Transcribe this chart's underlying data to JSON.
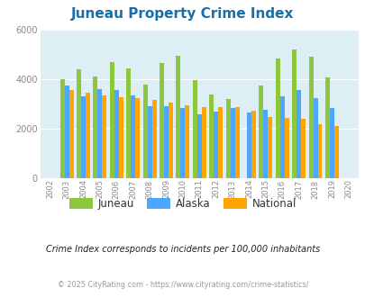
{
  "title": "Juneau Property Crime Index",
  "years": [
    2002,
    2003,
    2004,
    2005,
    2006,
    2007,
    2008,
    2009,
    2010,
    2011,
    2012,
    2013,
    2014,
    2015,
    2016,
    2017,
    2018,
    2019,
    2020
  ],
  "juneau": [
    null,
    4000,
    4400,
    4100,
    4700,
    4450,
    3800,
    4650,
    4950,
    3950,
    3380,
    3200,
    null,
    3750,
    4820,
    5200,
    4900,
    4060,
    null
  ],
  "alaska": [
    null,
    3750,
    3320,
    3600,
    3580,
    3350,
    2900,
    2920,
    2820,
    2600,
    2680,
    2820,
    2650,
    2750,
    3320,
    3550,
    3250,
    2820,
    null
  ],
  "national": [
    null,
    3580,
    3470,
    3360,
    3290,
    3240,
    3150,
    3040,
    2950,
    2870,
    2870,
    2870,
    2740,
    2490,
    2450,
    2390,
    2200,
    2110,
    null
  ],
  "colors": {
    "juneau": "#8dc63f",
    "alaska": "#4da6ff",
    "national": "#ffa500"
  },
  "bg_color": "#ddeef5",
  "ylim": [
    0,
    6000
  ],
  "yticks": [
    0,
    2000,
    4000,
    6000
  ],
  "subtitle": "Crime Index corresponds to incidents per 100,000 inhabitants",
  "footer": "© 2025 CityRating.com - https://www.cityrating.com/crime-statistics/",
  "title_color": "#1a6fa8",
  "subtitle_color": "#222222",
  "footer_color": "#999999",
  "tick_color": "#888888"
}
